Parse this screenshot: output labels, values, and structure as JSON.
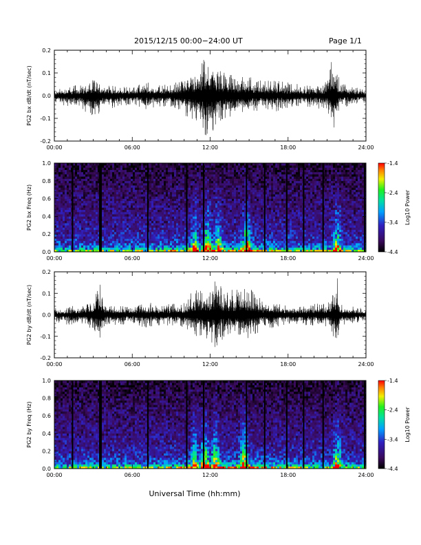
{
  "header": {
    "title": "2015/12/15  00:00−24:00 UT",
    "page": "Page 1/1"
  },
  "chart_data": [
    {
      "type": "line",
      "panel": "bx-waveform",
      "ylabel": "PG2 bx dB/dt (nT/sec)",
      "xlim_hours": [
        0,
        24
      ],
      "ylim": [
        -0.2,
        0.2
      ],
      "xticks": [
        "00:00",
        "06:00",
        "12:00",
        "18:00",
        "24:00"
      ],
      "yticks": [
        "-0.2",
        "-0.1",
        "0.0",
        "0.1",
        "0.2"
      ],
      "series": [
        {
          "x_hours": [
            0,
            1,
            2,
            3,
            4,
            5,
            6,
            7,
            8,
            9,
            10,
            10.5,
            11,
            11.5,
            12,
            12.5,
            13,
            14,
            15,
            16,
            17,
            18,
            19,
            20,
            21,
            21.5,
            22,
            23,
            24
          ],
          "envelope_max": [
            0.03,
            0.04,
            0.05,
            0.07,
            0.05,
            0.04,
            0.04,
            0.06,
            0.05,
            0.05,
            0.08,
            0.12,
            0.1,
            0.17,
            0.17,
            0.12,
            0.11,
            0.09,
            0.09,
            0.07,
            0.07,
            0.06,
            0.05,
            0.05,
            0.06,
            0.19,
            0.06,
            0.04,
            0.03
          ],
          "envelope_min": [
            -0.03,
            -0.05,
            -0.06,
            -0.1,
            -0.06,
            -0.05,
            -0.04,
            -0.06,
            -0.05,
            -0.05,
            -0.09,
            -0.1,
            -0.12,
            -0.18,
            -0.19,
            -0.12,
            -0.11,
            -0.09,
            -0.09,
            -0.07,
            -0.07,
            -0.06,
            -0.05,
            -0.05,
            -0.07,
            -0.2,
            -0.06,
            -0.04,
            -0.03
          ]
        }
      ]
    },
    {
      "type": "heatmap",
      "panel": "bx-spectrogram",
      "ylabel": "PG2 bx Freq (Hz)",
      "xlim_hours": [
        0,
        24
      ],
      "ylim": [
        0.0,
        1.0
      ],
      "xticks": [
        "00:00",
        "06:00",
        "12:00",
        "18:00",
        "24:00"
      ],
      "yticks": [
        "0.0",
        "0.2",
        "0.4",
        "0.6",
        "0.8",
        "1.0"
      ],
      "colorbar": {
        "label": "Log10 Power",
        "range": [
          -4.4,
          -1.4
        ],
        "ticks": [
          "-1.4",
          "-2.4",
          "-3.4",
          "-4.4"
        ]
      },
      "gap_hours": [
        1.4,
        3.5,
        3.6,
        7.2,
        10.2,
        11.5,
        14.8,
        16.2,
        17.9,
        19.2,
        20.7,
        23.9
      ],
      "bursts": [
        {
          "center_hours": 10.8,
          "level": 0.55
        },
        {
          "center_hours": 11.8,
          "level": 0.7
        },
        {
          "center_hours": 12.6,
          "level": 0.6
        },
        {
          "center_hours": 14.8,
          "level": 0.75
        },
        {
          "center_hours": 21.8,
          "level": 0.6
        }
      ]
    },
    {
      "type": "line",
      "panel": "by-waveform",
      "ylabel": "PG2 by dB/dt (nT/sec)",
      "xlim_hours": [
        0,
        24
      ],
      "ylim": [
        -0.2,
        0.2
      ],
      "xticks": [
        "00:00",
        "06:00",
        "12:00",
        "18:00",
        "24:00"
      ],
      "yticks": [
        "-0.2",
        "-0.1",
        "0.0",
        "0.1",
        "0.2"
      ],
      "series": [
        {
          "x_hours": [
            0,
            1,
            2,
            3,
            3.5,
            4,
            5,
            6,
            7,
            8,
            9,
            10,
            10.5,
            11,
            11.5,
            12,
            12.5,
            13,
            14,
            15,
            16,
            17,
            18,
            19,
            20,
            21,
            21.8,
            22,
            23,
            24
          ],
          "envelope_max": [
            0.03,
            0.04,
            0.05,
            0.07,
            0.16,
            0.05,
            0.04,
            0.04,
            0.06,
            0.05,
            0.05,
            0.06,
            0.1,
            0.12,
            0.15,
            0.12,
            0.18,
            0.11,
            0.12,
            0.13,
            0.07,
            0.06,
            0.05,
            0.05,
            0.05,
            0.06,
            0.17,
            0.05,
            0.04,
            0.03
          ],
          "envelope_min": [
            -0.03,
            -0.05,
            -0.05,
            -0.07,
            -0.14,
            -0.05,
            -0.05,
            -0.04,
            -0.06,
            -0.05,
            -0.05,
            -0.06,
            -0.1,
            -0.1,
            -0.12,
            -0.12,
            -0.18,
            -0.11,
            -0.12,
            -0.11,
            -0.07,
            -0.06,
            -0.05,
            -0.05,
            -0.05,
            -0.06,
            -0.14,
            -0.05,
            -0.04,
            -0.03
          ]
        }
      ]
    },
    {
      "type": "heatmap",
      "panel": "by-spectrogram",
      "ylabel": "PG2 by Freq (Hz)",
      "xlim_hours": [
        0,
        24
      ],
      "ylim": [
        0.0,
        1.0
      ],
      "xticks": [
        "00:00",
        "06:00",
        "12:00",
        "18:00",
        "24:00"
      ],
      "yticks": [
        "0.0",
        "0.2",
        "0.4",
        "0.6",
        "0.8",
        "1.0"
      ],
      "colorbar": {
        "label": "Log10 Power",
        "range": [
          -4.4,
          -1.4
        ],
        "ticks": [
          "-1.4",
          "-2.4",
          "-3.4",
          "-4.4"
        ]
      },
      "gap_hours": [
        1.4,
        3.5,
        3.6,
        7.2,
        10.2,
        11.5,
        14.8,
        16.2,
        17.9,
        19.2,
        20.7,
        23.9
      ],
      "bursts": [
        {
          "center_hours": 10.8,
          "level": 0.6
        },
        {
          "center_hours": 11.6,
          "level": 0.75
        },
        {
          "center_hours": 12.4,
          "level": 0.65
        },
        {
          "center_hours": 14.6,
          "level": 0.8
        },
        {
          "center_hours": 21.8,
          "level": 0.65
        }
      ]
    }
  ],
  "xlabel": "Universal Time (hh:mm)"
}
